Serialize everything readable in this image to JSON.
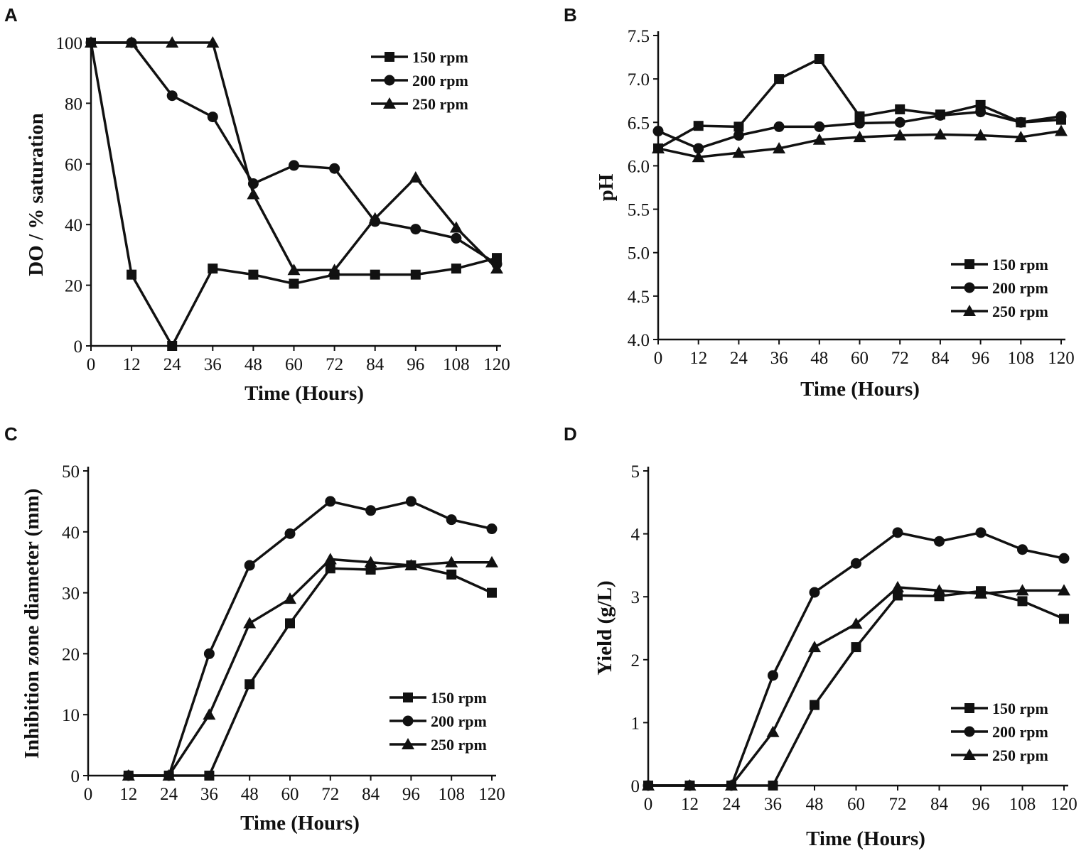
{
  "figure": {
    "line_color": "#111111",
    "background": "#ffffff"
  },
  "chart_data": [
    {
      "panel": "A",
      "type": "line",
      "xlabel": "Time (Hours)",
      "ylabel": "DO / % saturation",
      "x": [
        0,
        12,
        24,
        36,
        48,
        60,
        72,
        84,
        96,
        108,
        120
      ],
      "xticks": [
        0,
        12,
        24,
        36,
        48,
        60,
        72,
        84,
        96,
        108,
        120
      ],
      "yticks": [
        0,
        20,
        40,
        60,
        80,
        100
      ],
      "ytick_labels": [
        "0",
        "20",
        "40",
        "60",
        "80",
        "100"
      ],
      "xlim": [
        0,
        120
      ],
      "ylim": [
        0,
        100
      ],
      "legend_position": "top-right",
      "series": [
        {
          "name": "150 rpm",
          "marker": "square",
          "values": [
            100,
            23.5,
            0,
            25.5,
            23.5,
            20.5,
            23.5,
            23.5,
            23.5,
            25.5,
            29
          ]
        },
        {
          "name": "200 rpm",
          "marker": "circle",
          "values": [
            100,
            100,
            82.5,
            75.5,
            53.5,
            59.5,
            58.5,
            41,
            38.5,
            35.5,
            27
          ]
        },
        {
          "name": "250 rpm",
          "marker": "triangle",
          "values": [
            100,
            100,
            100,
            100,
            50,
            25,
            25,
            42,
            55.5,
            39,
            25.5
          ]
        }
      ]
    },
    {
      "panel": "B",
      "type": "line",
      "xlabel": "Time (Hours)",
      "ylabel": "pH",
      "x": [
        0,
        12,
        24,
        36,
        48,
        60,
        72,
        84,
        96,
        108,
        120
      ],
      "xticks": [
        0,
        12,
        24,
        36,
        48,
        60,
        72,
        84,
        96,
        108,
        120
      ],
      "yticks": [
        4.0,
        4.5,
        5.0,
        5.5,
        6.0,
        6.5,
        7.0,
        7.5
      ],
      "ytick_labels": [
        "4.0",
        "4.5",
        "5.0",
        "5.5",
        "6.0",
        "6.5",
        "7.0",
        "7.5"
      ],
      "xlim": [
        0,
        120
      ],
      "ylim": [
        4.0,
        7.5
      ],
      "legend_position": "bottom-right",
      "series": [
        {
          "name": "150 rpm",
          "marker": "square",
          "values": [
            6.2,
            6.46,
            6.45,
            7.0,
            7.23,
            6.57,
            6.65,
            6.59,
            6.7,
            6.5,
            6.53
          ]
        },
        {
          "name": "200 rpm",
          "marker": "circle",
          "values": [
            6.4,
            6.2,
            6.35,
            6.45,
            6.45,
            6.49,
            6.5,
            6.58,
            6.62,
            6.5,
            6.57
          ]
        },
        {
          "name": "250 rpm",
          "marker": "triangle",
          "values": [
            6.2,
            6.1,
            6.15,
            6.2,
            6.3,
            6.33,
            6.35,
            6.36,
            6.35,
            6.33,
            6.4
          ]
        }
      ]
    },
    {
      "panel": "C",
      "type": "line",
      "xlabel": "Time (Hours)",
      "ylabel": "Inhibition zone diameter (mm)",
      "x": [
        0,
        12,
        24,
        36,
        48,
        60,
        72,
        84,
        96,
        108,
        120
      ],
      "xticks": [
        0,
        12,
        24,
        36,
        48,
        60,
        72,
        84,
        96,
        108,
        120
      ],
      "yticks": [
        0,
        10,
        20,
        30,
        40,
        50
      ],
      "ytick_labels": [
        "0",
        "10",
        "20",
        "30",
        "40",
        "50"
      ],
      "xlim": [
        0,
        120
      ],
      "ylim": [
        0,
        50
      ],
      "legend_position": "bottom-right",
      "series": [
        {
          "name": "150 rpm",
          "marker": "square",
          "values": [
            null,
            0,
            0,
            0,
            15,
            25,
            34,
            33.8,
            34.5,
            33,
            30
          ]
        },
        {
          "name": "200 rpm",
          "marker": "circle",
          "values": [
            null,
            0,
            0,
            20,
            34.5,
            39.7,
            45,
            43.5,
            45,
            42,
            40.5
          ]
        },
        {
          "name": "250 rpm",
          "marker": "triangle",
          "values": [
            null,
            0,
            0,
            10,
            25,
            29,
            35.5,
            35,
            34.5,
            35,
            35
          ]
        }
      ]
    },
    {
      "panel": "D",
      "type": "line",
      "xlabel": "Time (Hours)",
      "ylabel": "Yield (g/L)",
      "x": [
        0,
        12,
        24,
        36,
        48,
        60,
        72,
        84,
        96,
        108,
        120
      ],
      "xticks": [
        0,
        12,
        24,
        36,
        48,
        60,
        72,
        84,
        96,
        108,
        120
      ],
      "yticks": [
        0,
        1,
        2,
        3,
        4,
        5
      ],
      "ytick_labels": [
        "0",
        "1",
        "2",
        "3",
        "4",
        "5"
      ],
      "xlim": [
        0,
        120
      ],
      "ylim": [
        0,
        5
      ],
      "legend_position": "bottom-right",
      "series": [
        {
          "name": "150 rpm",
          "marker": "square",
          "values": [
            0,
            0,
            0,
            0,
            1.28,
            2.2,
            3.02,
            3.01,
            3.09,
            2.93,
            2.65
          ]
        },
        {
          "name": "200 rpm",
          "marker": "circle",
          "values": [
            0,
            0,
            0,
            1.75,
            3.07,
            3.53,
            4.02,
            3.88,
            4.02,
            3.75,
            3.61
          ]
        },
        {
          "name": "250 rpm",
          "marker": "triangle",
          "values": [
            0,
            0,
            0,
            0.85,
            2.2,
            2.57,
            3.15,
            3.1,
            3.05,
            3.1,
            3.1
          ]
        }
      ]
    }
  ]
}
